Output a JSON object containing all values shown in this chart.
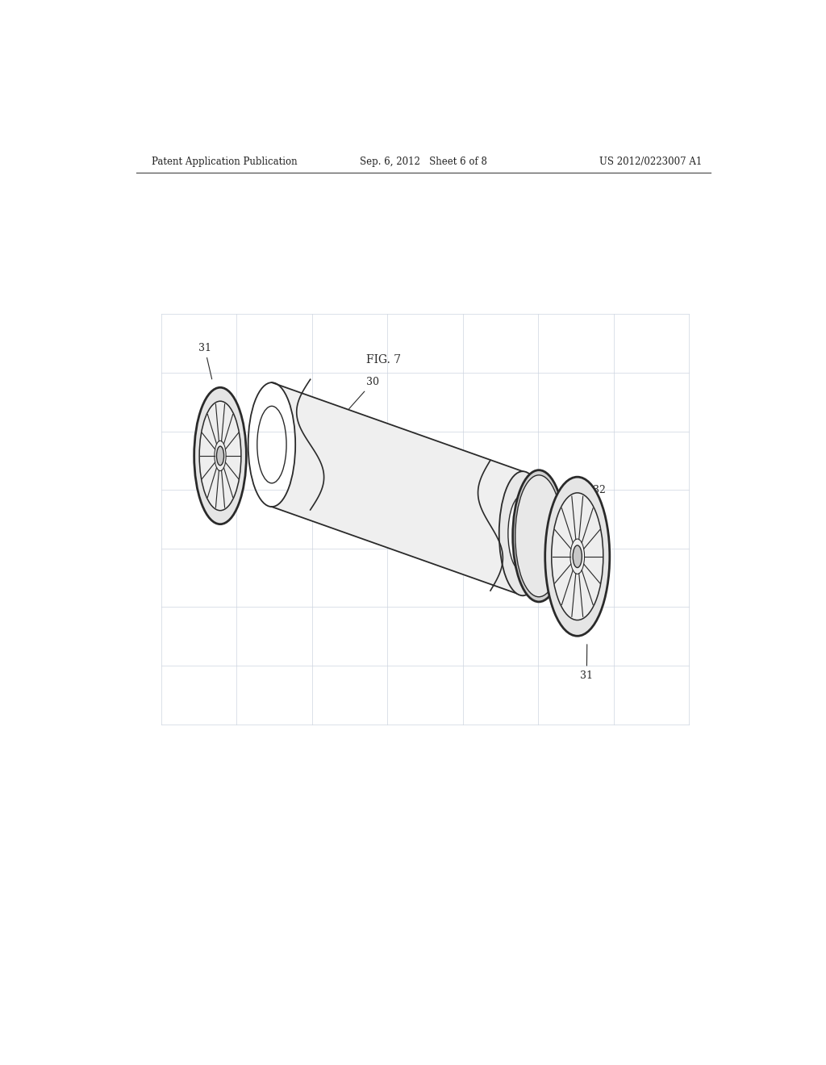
{
  "background_color": "#ffffff",
  "header_left": "Patent Application Publication",
  "header_center": "Sep. 6, 2012   Sheet 6 of 8",
  "header_right": "US 2012/0223007 A1",
  "fig_label": "FIG. 7",
  "label_30": "30",
  "label_31_top": "31",
  "label_31_bottom": "31",
  "label_32": "32",
  "line_color": "#2a2a2a",
  "grid_color": "#cdd5e0",
  "body_facecolor": "#f2f2f2"
}
